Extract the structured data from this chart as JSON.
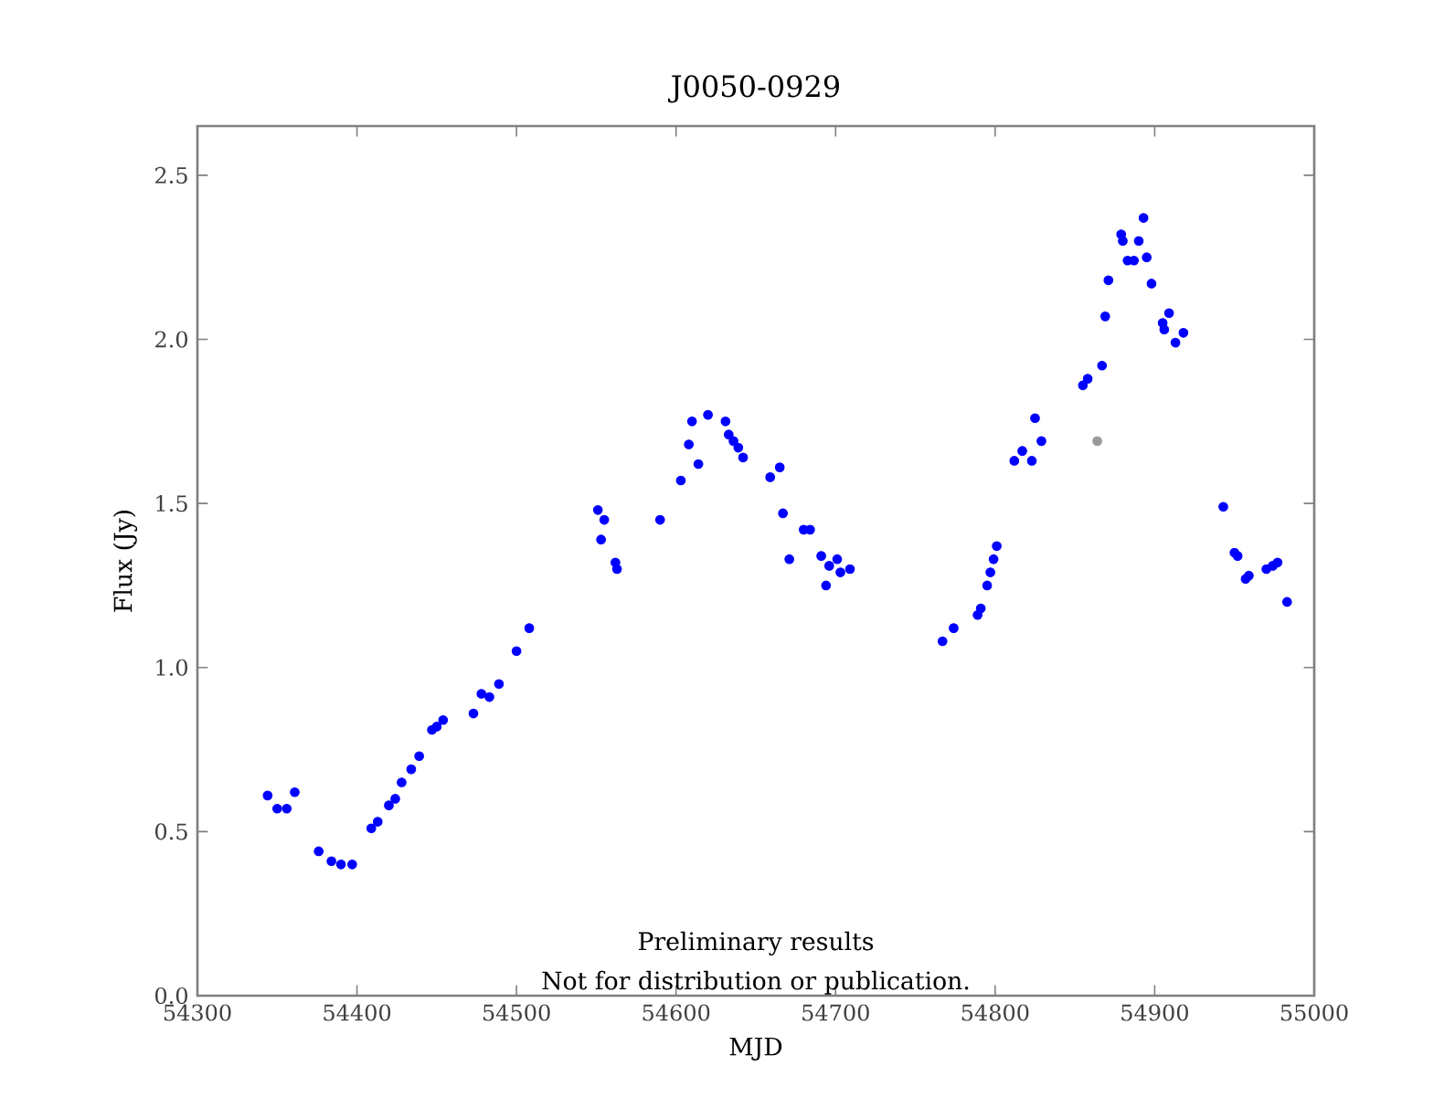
{
  "chart_data": {
    "type": "scatter",
    "title": "J0050-0929",
    "xlabel": "MJD",
    "ylabel": "Flux (Jy)",
    "xlim": [
      54300,
      55000
    ],
    "ylim": [
      0,
      2.65
    ],
    "xticks": [
      54300,
      54400,
      54500,
      54600,
      54700,
      54800,
      54900,
      55000
    ],
    "yticks": [
      {
        "value": 0,
        "label": "0.0"
      },
      {
        "value": 0.5,
        "label": "0.5"
      },
      {
        "value": 1,
        "label": "1.0"
      },
      {
        "value": 1.5,
        "label": "1.5"
      },
      {
        "value": 2,
        "label": "2.0"
      },
      {
        "value": 2.5,
        "label": "2.5"
      }
    ],
    "marker": "circle",
    "annotations": [
      "Preliminary results",
      "Not for distribution or publication."
    ],
    "series": [
      {
        "color": "#0000ff",
        "x": [
          54344,
          54350,
          54356,
          54361,
          54376,
          54384,
          54390,
          54397,
          54409,
          54413,
          54420,
          54424,
          54428,
          54434,
          54439,
          54447,
          54450,
          54454,
          54473,
          54478,
          54483,
          54489,
          54500,
          54508,
          54551,
          54555,
          54553,
          54562,
          54563,
          54590,
          54603,
          54608,
          54610,
          54614,
          54620,
          54631,
          54633,
          54636,
          54639,
          54642,
          54659,
          54665,
          54667,
          54671,
          54680,
          54684,
          54691,
          54696,
          54694,
          54701,
          54703,
          54709,
          54767,
          54774,
          54789,
          54791,
          54795,
          54797,
          54799,
          54801,
          54812,
          54817,
          54823,
          54825,
          54829,
          54855,
          54858,
          54867,
          54869,
          54871,
          54879,
          54880,
          54883,
          54887,
          54890,
          54893,
          54895,
          54898,
          54905,
          54906,
          54909,
          54913,
          54918,
          54943,
          54950,
          54952,
          54957,
          54959,
          54970,
          54974,
          54977,
          54983
        ],
        "values": [
          0.61,
          0.57,
          0.57,
          0.62,
          0.44,
          0.41,
          0.4,
          0.4,
          0.51,
          0.53,
          0.58,
          0.6,
          0.65,
          0.69,
          0.73,
          0.81,
          0.82,
          0.84,
          0.86,
          0.92,
          0.91,
          0.95,
          1.05,
          1.12,
          1.48,
          1.45,
          1.39,
          1.32,
          1.3,
          1.45,
          1.57,
          1.68,
          1.75,
          1.62,
          1.77,
          1.75,
          1.71,
          1.69,
          1.67,
          1.64,
          1.58,
          1.61,
          1.47,
          1.33,
          1.42,
          1.42,
          1.34,
          1.31,
          1.25,
          1.33,
          1.29,
          1.3,
          1.08,
          1.12,
          1.16,
          1.18,
          1.25,
          1.29,
          1.33,
          1.37,
          1.63,
          1.66,
          1.63,
          1.76,
          1.69,
          1.86,
          1.88,
          1.92,
          2.07,
          2.18,
          2.32,
          2.3,
          2.24,
          2.24,
          2.3,
          2.37,
          2.25,
          2.17,
          2.05,
          2.03,
          2.08,
          1.99,
          2.02,
          1.49,
          1.35,
          1.34,
          1.27,
          1.28,
          1.3,
          1.31,
          1.32,
          1.2
        ]
      },
      {
        "color": "#999999",
        "x": [
          54864
        ],
        "values": [
          1.69
        ]
      }
    ]
  }
}
